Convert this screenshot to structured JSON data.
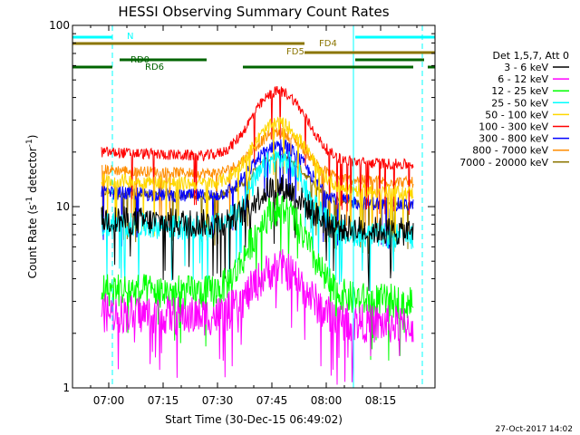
{
  "chart_data": {
    "type": "line",
    "title": "HESSI Observing Summary Count Rates",
    "xlabel": "Start Time (30-Dec-15 06:49:02)",
    "ylabel": "Count Rate (s",
    "ylabel_sup1": "-1",
    "ylabel_mid": " detector",
    "ylabel_sup2": "-1",
    "ylabel_end": ")",
    "y_scale": "log",
    "ylim": [
      1,
      100
    ],
    "xlim_minutes": [
      -10,
      90
    ],
    "x_ticks": [
      {
        "t": 0,
        "label": "07:00"
      },
      {
        "t": 15,
        "label": "07:15"
      },
      {
        "t": 30,
        "label": "07:30"
      },
      {
        "t": 45,
        "label": "07:45"
      },
      {
        "t": 60,
        "label": "08:00"
      },
      {
        "t": 75,
        "label": "08:15"
      }
    ],
    "y_ticks": [
      {
        "v": 1,
        "label": "1"
      },
      {
        "v": 10,
        "label": "10"
      },
      {
        "v": 100,
        "label": "100"
      }
    ],
    "legend_header": "Det 1,5,7, Att 0",
    "legend_position": "right",
    "series": [
      {
        "name": "3 - 6 keV",
        "color": "#000000",
        "base": 8.5,
        "peak": 13.5,
        "noise": 0.18
      },
      {
        "name": "6 - 12 keV",
        "color": "#ff00ff",
        "base": 2.6,
        "peak": 4.8,
        "noise": 0.25
      },
      {
        "name": "12 - 25 keV",
        "color": "#00ff00",
        "base": 3.5,
        "peak": 10,
        "noise": 0.22
      },
      {
        "name": "25 - 50 keV",
        "color": "#00ffff",
        "base": 8,
        "peak": 19,
        "noise": 0.16
      },
      {
        "name": "50 - 100 keV",
        "color": "#ffd700",
        "base": 14,
        "peak": 30,
        "noise": 0.09
      },
      {
        "name": "100 - 300 keV",
        "color": "#ff0000",
        "base": 20,
        "peak": 45,
        "noise": 0.07
      },
      {
        "name": "300 - 800 keV",
        "color": "#0000ff",
        "base": 12,
        "peak": 23,
        "noise": 0.09
      },
      {
        "name": "800 - 7000 keV",
        "color": "#ff8c00",
        "base": 16,
        "peak": 27,
        "noise": 0.07
      },
      {
        "name": "7000 - 20000 keV",
        "color": "#8b7500",
        "base": 12,
        "peak": 20,
        "noise": 0.05
      }
    ],
    "data_range_minutes": [
      -2,
      84
    ],
    "flare_peak_minutes": 47,
    "status_bars": [
      {
        "label": "N",
        "color": "#00ffff",
        "segments": [
          [
            -10,
            1
          ],
          [
            68,
            90
          ]
        ]
      },
      {
        "label": "FD4",
        "color": "#8b7500",
        "segments": [
          [
            -10,
            54
          ]
        ]
      },
      {
        "label": "FD5",
        "color": "#8b7500",
        "segments": [
          [
            54,
            90
          ]
        ]
      },
      {
        "label": "RD0",
        "color": "#006400",
        "segments": [
          [
            3,
            27
          ],
          [
            68,
            87
          ]
        ]
      },
      {
        "label": "RD6",
        "color": "#006400",
        "segments": [
          [
            -10,
            1
          ],
          [
            37,
            84
          ],
          [
            88,
            90
          ]
        ]
      }
    ],
    "vertical_markers": [
      {
        "t": 1,
        "color": "#00ffff",
        "style": "dashed"
      },
      {
        "t": 67.5,
        "color": "#00ffff",
        "style": "solid"
      },
      {
        "t": 86.5,
        "color": "#00ffff",
        "style": "dashed"
      }
    ],
    "timestamp": "27-Oct-2017 14:02"
  }
}
